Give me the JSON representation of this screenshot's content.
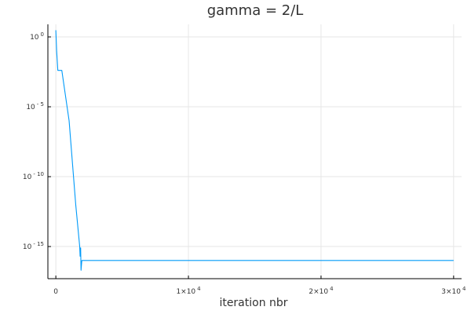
{
  "chart_data": {
    "type": "line",
    "title": "gamma = 2/L",
    "xlabel": "iteration nbr",
    "ylabel": "",
    "xscale": "linear",
    "yscale": "log",
    "xlim": [
      -600,
      30600
    ],
    "ylim_log10": [
      -17.3,
      0.9
    ],
    "grid": true,
    "legend": "none",
    "xticks": [
      {
        "value": 0,
        "label": "0"
      },
      {
        "value": 10000,
        "label": "1×10",
        "exp": "4"
      },
      {
        "value": 20000,
        "label": "2×10",
        "exp": "4"
      },
      {
        "value": 30000,
        "label": "3×10",
        "exp": "4"
      }
    ],
    "yticks": [
      {
        "value": 1,
        "label": "10",
        "exp": "0"
      },
      {
        "value": 1e-05,
        "label": "10",
        "exp": "- 5"
      },
      {
        "value": 1e-10,
        "label": "10",
        "exp": "- 10"
      },
      {
        "value": 1e-15,
        "label": "10",
        "exp": "- 15"
      }
    ],
    "series": [
      {
        "color": "#009AF9",
        "x": [
          0,
          60,
          150,
          250,
          350,
          450,
          1000,
          1500,
          1800,
          1830,
          1870,
          1900,
          1960,
          1990,
          2020,
          5000,
          10000,
          15000,
          20000,
          25000,
          30000
        ],
        "y": [
          3,
          0.1,
          0.004,
          0.004,
          0.004,
          0.004,
          1e-06,
          1e-12,
          1e-15,
          2e-16,
          8e-16,
          2e-17,
          1e-16,
          1e-16,
          1e-16,
          1e-16,
          1e-16,
          1e-16,
          1e-16,
          1e-16,
          1e-16
        ]
      }
    ]
  }
}
